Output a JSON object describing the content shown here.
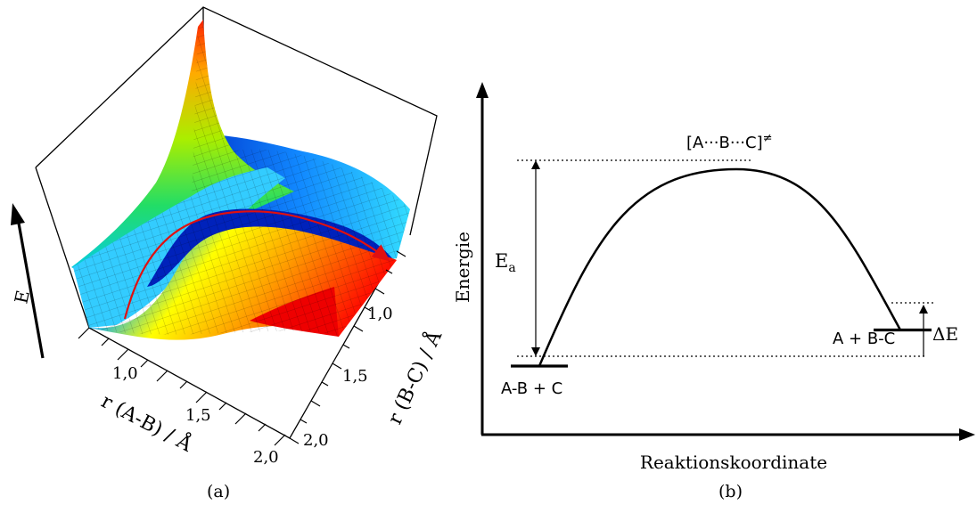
{
  "panel_a": {
    "caption": "(a)",
    "energy_axis_label": "E",
    "ab_axis": {
      "label": "r (A-B) / Å",
      "ticks": [
        "1,0",
        "1,5",
        "2,0"
      ]
    },
    "bc_axis": {
      "label": "r (B-C) / Å",
      "ticks": [
        "1,0",
        "1,5",
        "2,0"
      ]
    },
    "colors": {
      "reaction_path": "#e01010",
      "low": "#ff0000",
      "mid": "#ffee00",
      "valley": "#0022cc",
      "high": "#00d0ff"
    }
  },
  "panel_b": {
    "caption": "(b)",
    "chart_data": {
      "type": "line",
      "title": "",
      "xlabel": "Reaktionskoordinate",
      "ylabel": "Energie",
      "levels": {
        "reactants": 0,
        "transition_state": 1.0,
        "products": 0.21
      },
      "labels": {
        "reactants": "A-B + C",
        "transition_state": "[A···B···C]",
        "transition_state_mark": "≠",
        "products": "A + B-C",
        "activation": "E",
        "activation_subscript": "a",
        "delta": "ΔE"
      }
    }
  }
}
